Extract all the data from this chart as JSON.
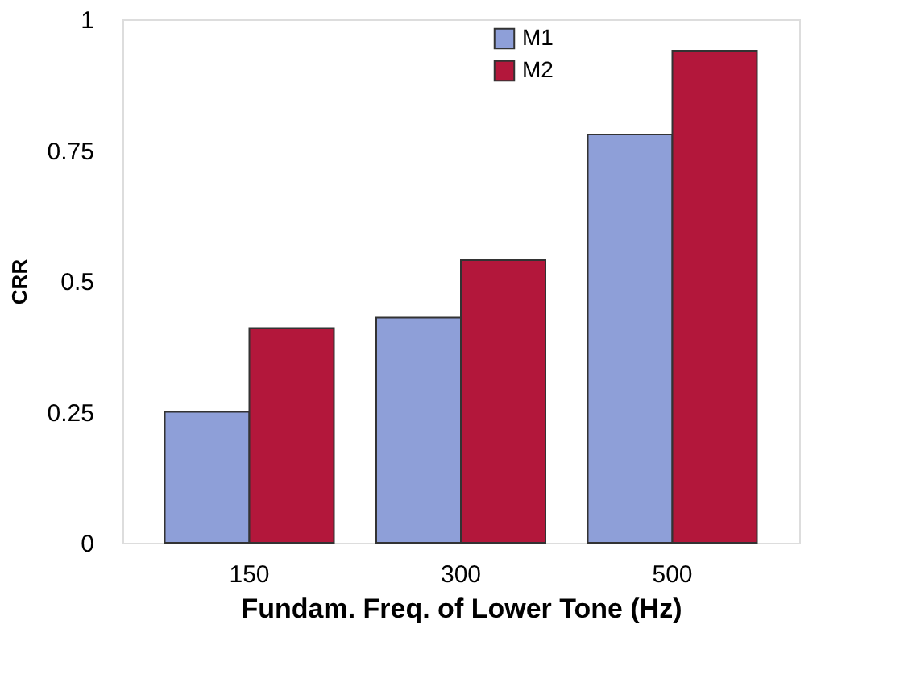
{
  "chart_data": {
    "type": "bar",
    "xlabel": "Fundam. Freq. of Lower Tone (Hz)",
    "ylabel": "CRR",
    "categories": [
      "150",
      "300",
      "500"
    ],
    "series": [
      {
        "name": "M1",
        "color": "#8e9fd8",
        "values": [
          0.25,
          0.43,
          0.78
        ]
      },
      {
        "name": "M2",
        "color": "#b3173b",
        "values": [
          0.41,
          0.54,
          0.94
        ]
      }
    ],
    "ylim": [
      0,
      1
    ],
    "yticks": [
      0,
      0.25,
      0.5,
      0.75,
      1
    ],
    "grid": false,
    "legend": "top right"
  }
}
